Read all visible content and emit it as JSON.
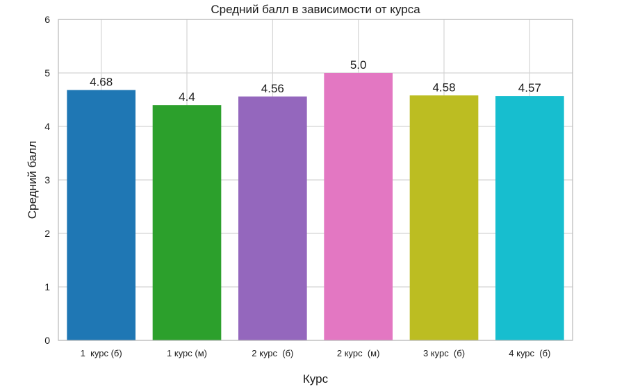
{
  "chart_data": {
    "type": "bar",
    "title": "Средний балл в зависимости от курса",
    "xlabel": "Курс",
    "ylabel": "Средний балл",
    "categories": [
      "1  курс (б)",
      "1 курс (м)",
      "2 курс  (б)",
      "2 курс  (м)",
      "3 курс  (б)",
      "4 курс  (б)"
    ],
    "values": [
      4.68,
      4.4,
      4.56,
      5.0,
      4.58,
      4.57
    ],
    "value_labels": [
      "4.68",
      "4.4",
      "4.56",
      "5.0",
      "4.58",
      "4.57"
    ],
    "colors": [
      "#1f77b4",
      "#2ca02c",
      "#9467bd",
      "#e377c2",
      "#bcbd22",
      "#17becf"
    ],
    "ylim": [
      0,
      6
    ],
    "yticks": [
      "0",
      "1",
      "2",
      "3",
      "4",
      "5",
      "6"
    ],
    "grid": true,
    "legend": "none"
  }
}
